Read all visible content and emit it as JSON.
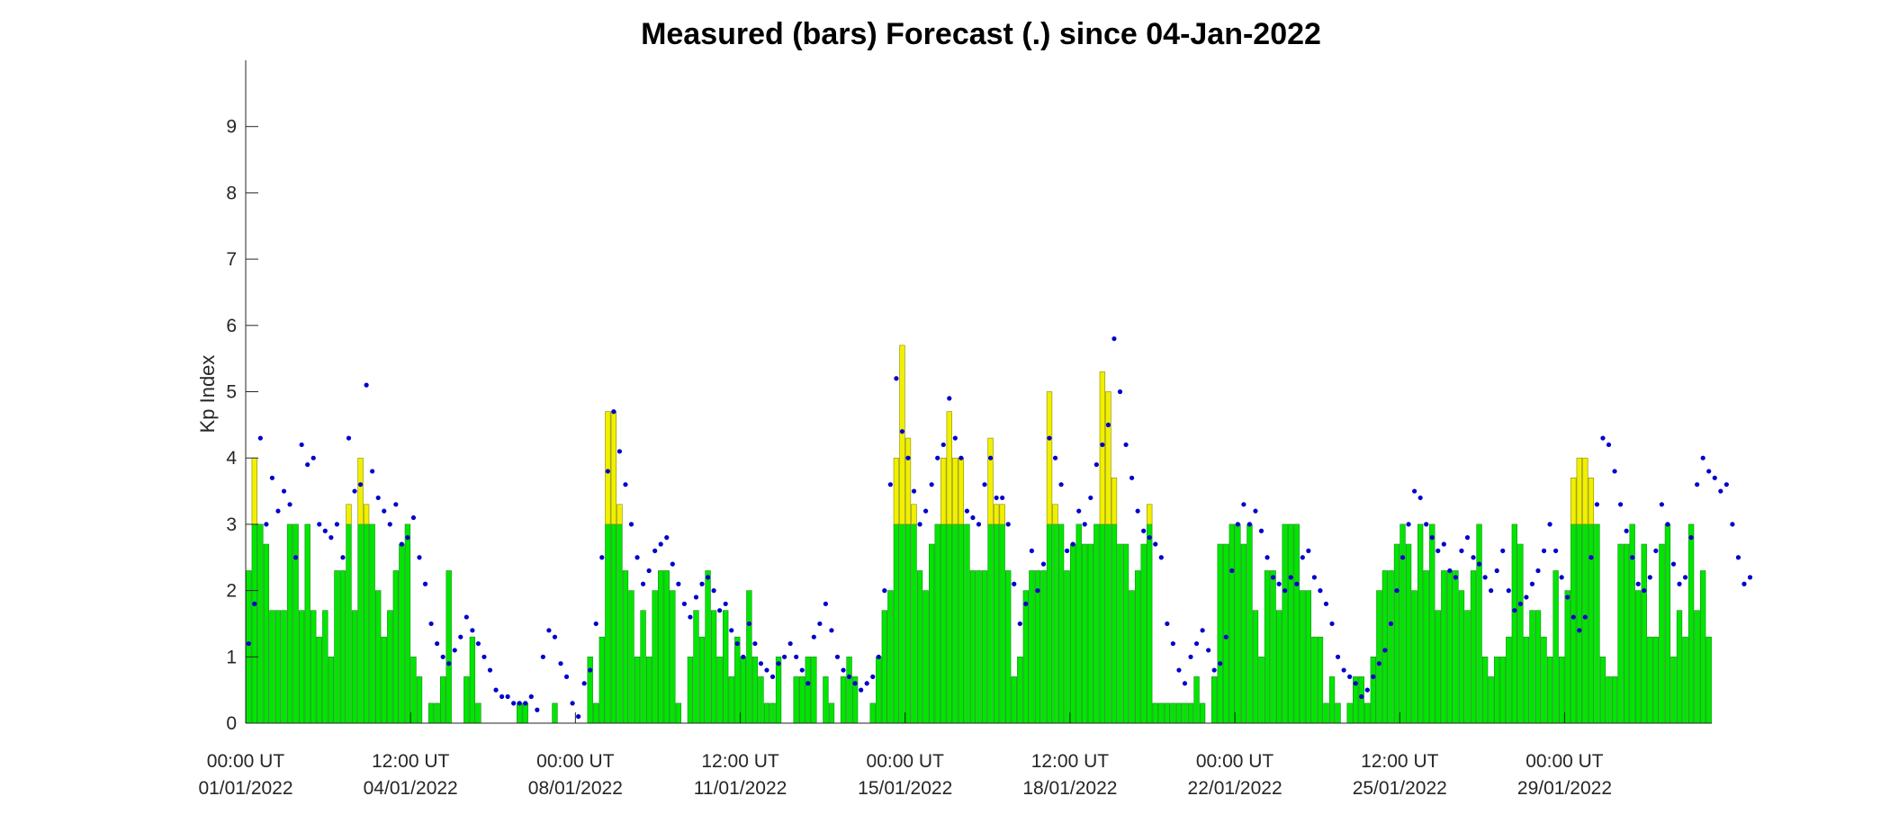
{
  "chart_data": {
    "type": "bar",
    "title": "Measured (bars) Forecast (.) since 04-Jan-2022",
    "ylabel": "Kp Index",
    "xlabel": "",
    "ylim": [
      0,
      10
    ],
    "yticks": [
      0,
      1,
      2,
      3,
      4,
      5,
      6,
      7,
      8,
      9
    ],
    "grid": false,
    "legend": "none",
    "threshold": 3,
    "colors": {
      "below": "#00e600",
      "above": "#f0f000",
      "forecast": "#0000cc"
    },
    "xticks": [
      {
        "line1": "00:00 UT",
        "line2": "01/01/2022",
        "pos": 0
      },
      {
        "line1": "12:00 UT",
        "line2": "04/01/2022",
        "pos": 28
      },
      {
        "line1": "00:00 UT",
        "line2": "08/01/2022",
        "pos": 56
      },
      {
        "line1": "12:00 UT",
        "line2": "11/01/2022",
        "pos": 84
      },
      {
        "line1": "00:00 UT",
        "line2": "15/01/2022",
        "pos": 112
      },
      {
        "line1": "12:00 UT",
        "line2": "18/01/2022",
        "pos": 140
      },
      {
        "line1": "00:00 UT",
        "line2": "22/01/2022",
        "pos": 168
      },
      {
        "line1": "12:00 UT",
        "line2": "25/01/2022",
        "pos": 196
      },
      {
        "line1": "00:00 UT",
        "line2": "29/01/2022",
        "pos": 224
      }
    ],
    "measured": [
      2.3,
      4.0,
      3.0,
      2.7,
      1.7,
      1.7,
      1.7,
      3.0,
      3.0,
      1.7,
      3.0,
      1.7,
      1.3,
      1.7,
      1.0,
      2.3,
      2.3,
      3.3,
      1.7,
      4.0,
      3.3,
      3.0,
      2.0,
      1.3,
      1.7,
      2.3,
      2.7,
      3.0,
      1.0,
      0.7,
      0.0,
      0.3,
      0.3,
      0.7,
      2.3,
      0.0,
      0.0,
      0.7,
      1.3,
      0.3,
      0.0,
      0.0,
      0.0,
      0.0,
      0.0,
      0.0,
      0.3,
      0.3,
      0.0,
      0.0,
      0.0,
      0.0,
      0.3,
      0.0,
      0.0,
      0.0,
      0.0,
      0.0,
      1.0,
      0.3,
      1.3,
      4.7,
      4.7,
      3.3,
      2.3,
      2.0,
      1.0,
      1.7,
      1.0,
      2.0,
      2.3,
      2.3,
      2.0,
      0.3,
      0.0,
      1.0,
      1.7,
      1.3,
      2.3,
      1.7,
      1.0,
      1.7,
      0.7,
      1.3,
      1.0,
      2.0,
      1.0,
      0.7,
      0.3,
      0.3,
      1.0,
      0.0,
      0.0,
      0.7,
      0.7,
      1.0,
      1.0,
      0.0,
      0.7,
      0.3,
      0.0,
      0.7,
      1.0,
      0.7,
      0.0,
      0.0,
      0.3,
      1.0,
      1.7,
      2.0,
      4.0,
      5.7,
      4.3,
      3.3,
      2.3,
      2.0,
      2.7,
      3.0,
      4.0,
      4.7,
      4.0,
      4.0,
      3.0,
      2.3,
      2.3,
      2.3,
      4.3,
      3.3,
      3.3,
      2.3,
      0.7,
      1.0,
      2.0,
      2.3,
      2.3,
      2.3,
      5.0,
      3.3,
      3.0,
      2.3,
      2.7,
      3.0,
      2.7,
      2.7,
      3.0,
      5.3,
      5.0,
      3.7,
      2.7,
      2.7,
      2.0,
      2.3,
      2.7,
      3.3,
      0.3,
      0.3,
      0.3,
      0.3,
      0.3,
      0.3,
      0.3,
      0.7,
      0.3,
      0.0,
      0.7,
      2.7,
      2.7,
      3.0,
      3.0,
      2.7,
      3.0,
      1.7,
      1.0,
      2.3,
      2.3,
      1.7,
      3.0,
      3.0,
      3.0,
      2.0,
      2.0,
      1.3,
      1.3,
      0.3,
      0.7,
      0.3,
      0.0,
      0.3,
      0.7,
      0.7,
      0.3,
      1.0,
      2.0,
      2.3,
      2.3,
      2.7,
      3.0,
      2.7,
      2.0,
      3.0,
      2.3,
      3.0,
      1.7,
      2.3,
      2.3,
      2.3,
      2.0,
      1.7,
      2.3,
      3.0,
      1.0,
      0.7,
      1.0,
      1.0,
      1.3,
      3.0,
      2.7,
      1.3,
      1.7,
      1.7,
      1.3,
      1.0,
      2.3,
      1.0,
      2.0,
      3.7,
      4.0,
      4.0,
      3.7,
      3.0,
      1.0,
      0.7,
      0.7,
      2.7,
      2.7,
      3.0,
      2.0,
      2.7,
      1.3,
      1.3,
      2.7,
      3.0,
      1.0,
      1.7,
      1.3,
      3.0,
      1.7,
      2.3,
      1.3
    ],
    "forecast": [
      1.2,
      1.8,
      4.3,
      3.0,
      3.7,
      3.2,
      3.5,
      3.3,
      2.5,
      4.2,
      3.9,
      4.0,
      3.0,
      2.9,
      2.8,
      3.0,
      2.5,
      4.3,
      3.5,
      3.6,
      5.1,
      3.8,
      3.4,
      3.2,
      3.0,
      3.3,
      2.7,
      2.8,
      3.1,
      2.5,
      2.1,
      1.5,
      1.2,
      1.0,
      0.9,
      1.1,
      1.3,
      1.6,
      1.4,
      1.2,
      1.0,
      0.8,
      0.5,
      0.4,
      0.4,
      0.3,
      0.3,
      0.3,
      0.4,
      0.2,
      1.0,
      1.4,
      1.3,
      0.9,
      0.7,
      0.3,
      0.1,
      0.6,
      0.8,
      1.5,
      2.5,
      3.8,
      4.7,
      4.1,
      3.6,
      3.0,
      2.5,
      2.1,
      2.3,
      2.6,
      2.7,
      2.8,
      2.4,
      2.1,
      1.8,
      1.6,
      1.9,
      2.1,
      2.2,
      2.0,
      1.7,
      1.8,
      1.4,
      1.2,
      1.0,
      1.5,
      1.2,
      0.9,
      0.8,
      0.7,
      0.9,
      1.0,
      1.2,
      1.0,
      0.8,
      0.6,
      1.3,
      1.5,
      1.8,
      1.4,
      1.0,
      0.8,
      0.7,
      0.6,
      0.5,
      0.6,
      0.7,
      1.0,
      2.0,
      3.6,
      5.2,
      4.4,
      4.0,
      3.5,
      3.0,
      3.2,
      3.6,
      4.0,
      4.2,
      4.9,
      4.3,
      4.0,
      3.2,
      3.1,
      3.0,
      3.6,
      4.0,
      3.4,
      3.4,
      3.0,
      2.1,
      1.5,
      1.8,
      2.6,
      2.0,
      2.4,
      4.3,
      4.0,
      3.6,
      2.6,
      2.7,
      3.2,
      3.0,
      3.4,
      3.9,
      4.2,
      4.5,
      5.8,
      5.0,
      4.2,
      3.7,
      3.2,
      2.9,
      2.8,
      2.7,
      2.5,
      1.5,
      1.2,
      0.8,
      0.6,
      1.0,
      1.2,
      1.4,
      1.1,
      0.8,
      0.9,
      1.3,
      2.3,
      3.0,
      3.3,
      3.0,
      3.2,
      2.9,
      2.5,
      2.2,
      2.1,
      2.0,
      2.2,
      2.1,
      2.5,
      2.6,
      2.2,
      2.0,
      1.8,
      1.5,
      1.0,
      0.8,
      0.7,
      0.6,
      0.4,
      0.5,
      0.7,
      0.9,
      1.1,
      1.5,
      2.0,
      2.5,
      3.0,
      3.5,
      3.4,
      3.0,
      2.8,
      2.6,
      2.7,
      2.3,
      2.2,
      2.6,
      2.8,
      2.5,
      2.4,
      2.2,
      2.0,
      2.3,
      2.6,
      2.0,
      1.7,
      1.8,
      1.9,
      2.1,
      2.3,
      2.6,
      3.0,
      2.6,
      2.2,
      1.9,
      1.6,
      1.4,
      1.6,
      2.5,
      3.3,
      4.3,
      4.2,
      3.8,
      3.3,
      2.9,
      2.5,
      2.1,
      2.0,
      2.2,
      2.6,
      3.3,
      3.0,
      2.4,
      2.1,
      2.2,
      2.8,
      3.6,
      4.0,
      3.8,
      3.7,
      3.5,
      3.6,
      3.0,
      2.5,
      2.1,
      2.2
    ]
  }
}
